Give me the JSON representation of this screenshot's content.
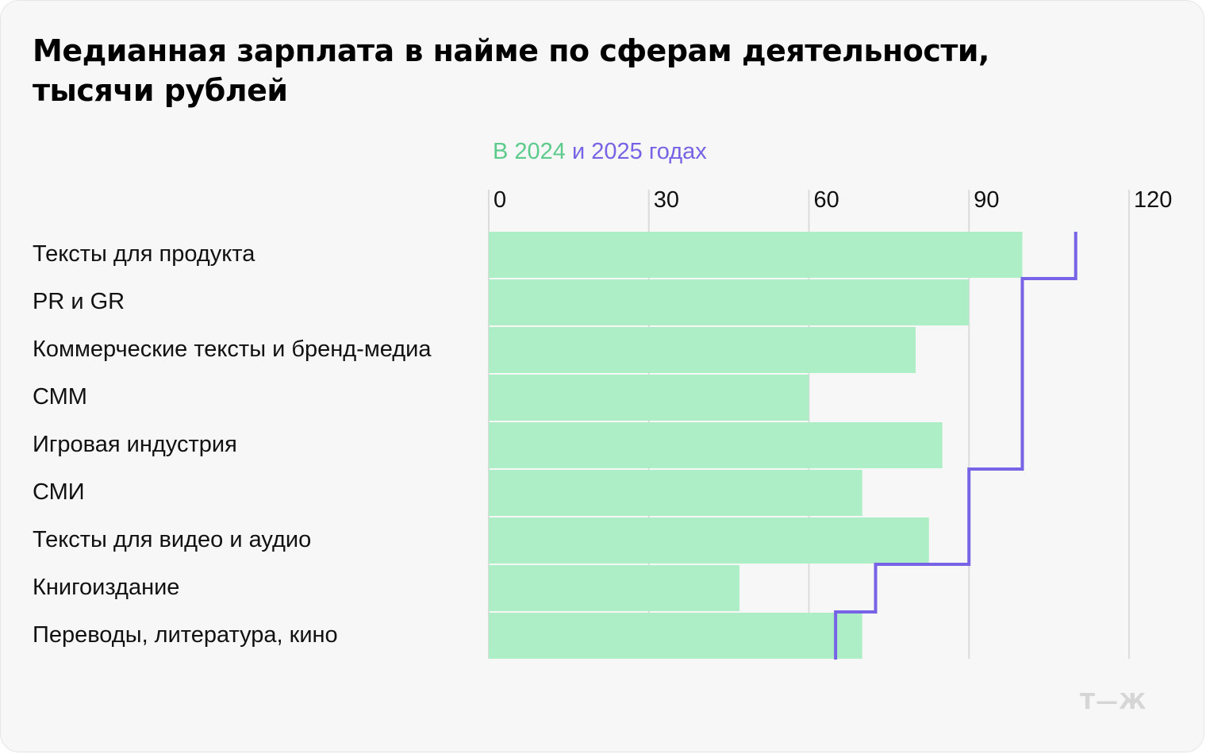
{
  "title_lines": [
    "Медианная зарплата в найме по сферам деятельности,",
    "тысячи рублей"
  ],
  "legend": {
    "year1": "В 2024",
    "joiner": " и ",
    "year2": "2025 годах"
  },
  "logo_text": "Т—Ж",
  "colors": {
    "bar_2024": "#adeec6",
    "line_2025": "#7763e6",
    "grid": "#dcdcdc",
    "legend_2024": "#5ccb8b"
  },
  "chart_data": {
    "type": "bar",
    "orientation": "horizontal",
    "title": "Медианная зарплата в найме по сферам деятельности, тысячи рублей",
    "categories": [
      "Тексты для продукта",
      "PR и GR",
      "Коммерческие тексты и бренд-медиа",
      "СММ",
      "Игровая индустрия",
      "СМИ",
      "Тексты для видео и аудио",
      "Книгоиздание",
      "Переводы, литература, кино"
    ],
    "series": [
      {
        "name": "2024",
        "values": [
          100,
          90,
          80,
          60,
          85,
          70,
          82.5,
          47,
          70
        ]
      },
      {
        "name": "2025",
        "values": [
          110,
          100,
          100,
          100,
          100,
          90,
          90,
          72.5,
          65
        ]
      }
    ],
    "xlim": [
      0,
      120
    ],
    "xticks": [
      0,
      30,
      60,
      90,
      120
    ],
    "grid": true,
    "legend_position": "top"
  }
}
